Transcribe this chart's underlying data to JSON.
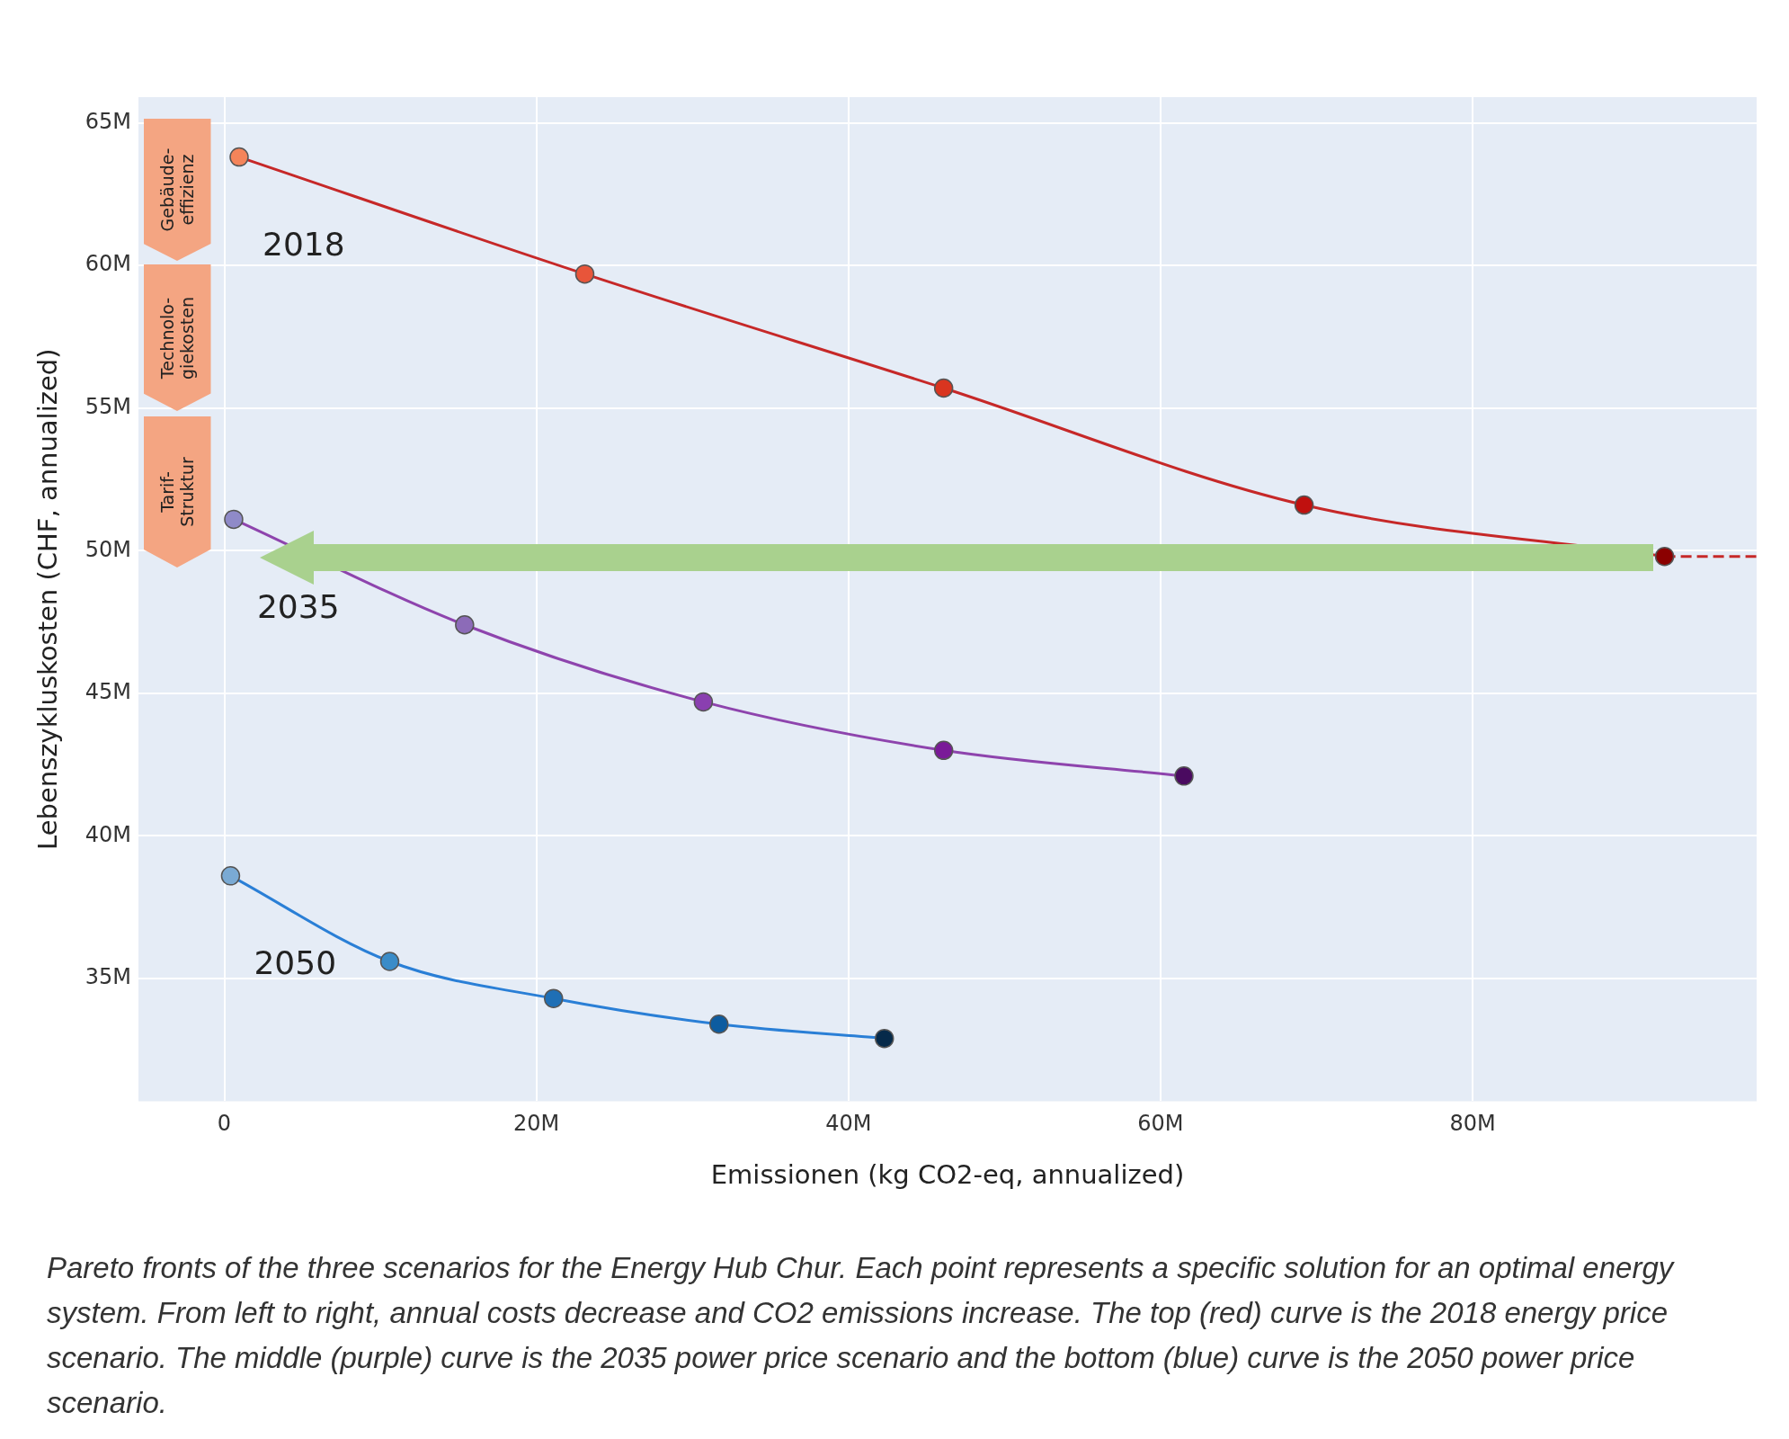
{
  "chart_data": {
    "type": "line",
    "xlabel": "Emissionen (kg CO2-eq, annualized)",
    "ylabel": "Lebenszykluskosten (CHF, annualized)",
    "xlim": [
      -5.5,
      98.2
    ],
    "ylim": [
      30.7,
      65.9
    ],
    "xticks": [
      0,
      {
        "value": 20,
        "label": "20M"
      },
      {
        "value": 40,
        "label": "40M"
      },
      {
        "value": 60,
        "label": "60M"
      },
      {
        "value": 80,
        "label": "80M"
      }
    ],
    "yticks": [
      {
        "value": 35,
        "label": "35M"
      },
      {
        "value": 40,
        "label": "40M"
      },
      {
        "value": 45,
        "label": "45M"
      },
      {
        "value": 50,
        "label": "50M"
      },
      {
        "value": 55,
        "label": "55M"
      },
      {
        "value": 60,
        "label": "60M"
      },
      {
        "value": 65,
        "label": "65M"
      }
    ],
    "grid": true,
    "legend": false,
    "marker": "circle",
    "line_style": "solid",
    "series": [
      {
        "name": "2018",
        "color": "#c62828",
        "x": [
          0.95,
          23.1,
          46.1,
          69.2,
          92.3
        ],
        "values": [
          63.8,
          59.7,
          55.7,
          51.6,
          49.8
        ],
        "colors": [
          "#f4845a",
          "#e8553a",
          "#d93520",
          "#c0100e",
          "#8b0000"
        ]
      },
      {
        "name": "2035",
        "color": "#8e44ad",
        "x": [
          0.6,
          15.4,
          30.7,
          46.1,
          61.5
        ],
        "values": [
          51.1,
          47.4,
          44.7,
          43.0,
          42.1
        ],
        "colors": [
          "#8f8ac8",
          "#8c6bb8",
          "#8a3fb0",
          "#7a1a98",
          "#4a0a60"
        ]
      },
      {
        "name": "2050",
        "color": "#2a7fd6",
        "x": [
          0.4,
          10.6,
          21.1,
          31.7,
          42.3
        ],
        "values": [
          38.6,
          35.6,
          34.3,
          33.4,
          32.9
        ],
        "colors": [
          "#7aaad4",
          "#3a8cc8",
          "#1f6fb5",
          "#0d5ca0",
          "#062a4a"
        ]
      },
      {
        "type": "line",
        "color": "#c62828",
        "line_style": "dashed",
        "marker": "none",
        "x": [
          92.3,
          98.2
        ],
        "values": [
          49.8,
          49.8
        ]
      }
    ],
    "annotations": [
      "Gebäude-\neffizienz",
      "Technolo-\ngiekosten",
      "Tarif-\nStruktur",
      "Pareto fronts of the three scenarios for the Energy Hub Chur.  Each point represents a specific solution  for an optimal energy system.  From  left to right,  annual costs  decrease and CO2 emissions  increase. The top (red) curve is the 2018 energy price scenario.  The middle (purple) curve is the 2035 power price scenario and the bottom  (blue) curve is the 2050 power price scenario."
    ]
  }
}
